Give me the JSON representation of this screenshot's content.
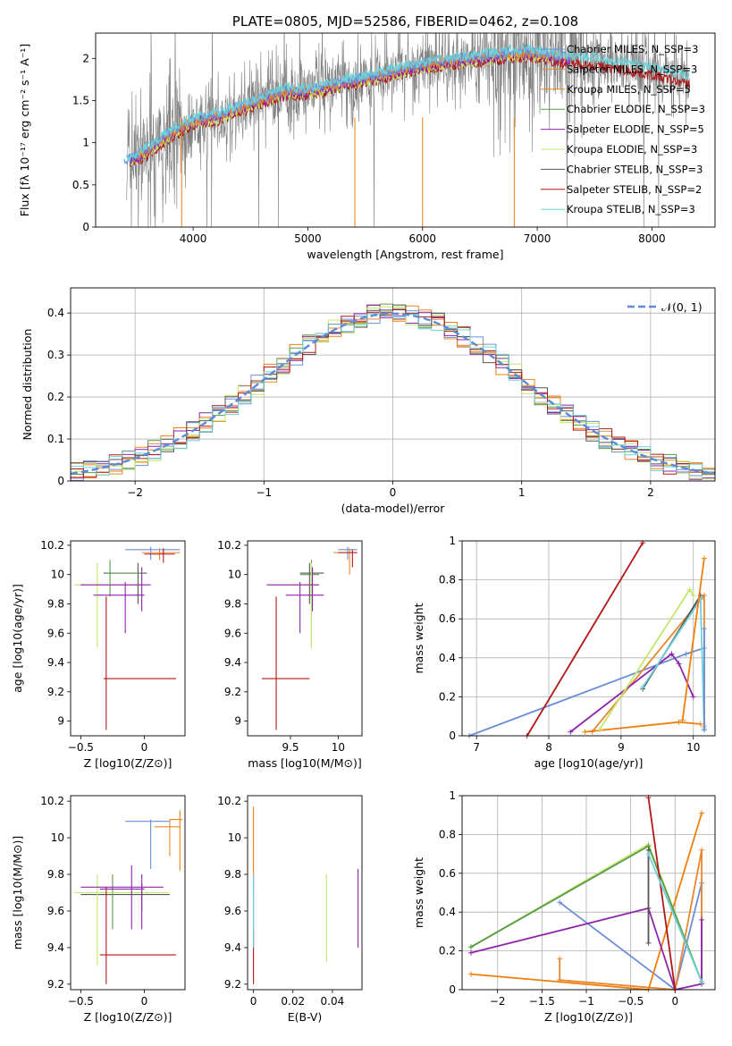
{
  "colors": [
    "#6a8fd8",
    "#e8872e",
    "#f07f0a",
    "#5a9a4a",
    "#8e24aa",
    "#c2e66a",
    "#555555",
    "#b01818",
    "#6ed0d8"
  ],
  "chart_data": [
    {
      "id": "spectrum",
      "type": "line",
      "title": "PLATE=0805, MJD=52586, FIBERID=0462, z=0.108",
      "xlabel": "wavelength [Angstrom, rest frame]",
      "ylabel": "Flux [fλ 10⁻¹⁷ erg cm⁻² s⁻¹ A⁻¹]",
      "xlim": [
        3150,
        8550
      ],
      "ylim": [
        0,
        2.3
      ],
      "xticks": [
        4000,
        5000,
        6000,
        7000,
        8000
      ],
      "yticks": [
        0.0,
        0.5,
        1.0,
        1.5,
        2.0
      ],
      "grid": false,
      "legend_position": "top-right",
      "legend": [
        "Chabrier MILES, N_SSP=3",
        "Salpeter MILES, N_SSP=3",
        "Kroupa MILES, N_SSP=5",
        "Chabrier ELODIE, N_SSP=3",
        "Salpeter ELODIE, N_SSP=5",
        "Kroupa ELODIE, N_SSP=3",
        "Chabrier STELIB, N_SSP=3",
        "Salpeter STELIB, N_SSP=2",
        "Kroupa STELIB, N_SSP=3"
      ],
      "continuum": {
        "x": [
          3400,
          3600,
          3800,
          4000,
          4200,
          4500,
          4800,
          5000,
          5300,
          5600,
          5900,
          6200,
          6500,
          6800,
          7000,
          7200,
          7400,
          7700,
          8000,
          8300
        ],
        "y": [
          0.75,
          0.9,
          1.1,
          1.25,
          1.3,
          1.45,
          1.6,
          1.6,
          1.7,
          1.78,
          1.88,
          1.95,
          2.0,
          2.05,
          2.05,
          2.0,
          1.98,
          1.92,
          1.85,
          1.75
        ]
      }
    },
    {
      "id": "residuals",
      "type": "histogram",
      "xlabel": "(data-model)/error",
      "ylabel": "Normed distribution",
      "xlim": [
        -2.5,
        2.5
      ],
      "ylim": [
        0,
        0.46
      ],
      "xticks": [
        -2,
        -1,
        0,
        1,
        2
      ],
      "yticks": [
        0.0,
        0.1,
        0.2,
        0.3,
        0.4
      ],
      "grid": true,
      "legend": [
        "𝒩(0, 1)"
      ],
      "bin_width": 0.1,
      "mean": 0,
      "sigma": 1
    },
    {
      "id": "age_vs_Z",
      "type": "errorbar",
      "xlabel": "Z [log10(Z/Z⊙)]",
      "ylabel": "age [log10(age/yr)]",
      "xlim": [
        -0.58,
        0.32
      ],
      "ylim": [
        8.9,
        10.23
      ],
      "xticks": [
        -0.5,
        0.0
      ],
      "yticks": [
        9.0,
        9.2,
        9.4,
        9.6,
        9.8,
        10.0,
        10.2
      ],
      "points": [
        {
          "x": 0.05,
          "y": 10.17,
          "xl": -0.15,
          "xh": 0.28,
          "yl": 10.1,
          "yh": 10.19,
          "c": 0
        },
        {
          "x": 0.12,
          "y": 10.15,
          "xl": -0.02,
          "xh": 0.28,
          "yl": 10.1,
          "yh": 10.18,
          "c": 1
        },
        {
          "x": 0.15,
          "y": 10.14,
          "xl": 0.0,
          "xh": 0.24,
          "yl": 10.08,
          "yh": 10.18,
          "c": 7
        },
        {
          "x": -0.05,
          "y": 10.01,
          "xl": -0.32,
          "xh": 0.02,
          "yl": 9.8,
          "yh": 10.08,
          "c": 6
        },
        {
          "x": -0.27,
          "y": 10.01,
          "xl": -0.3,
          "xh": 0.0,
          "yl": 9.85,
          "yh": 10.1,
          "c": 3
        },
        {
          "x": -0.37,
          "y": 9.93,
          "xl": -0.55,
          "xh": -0.03,
          "yl": 9.5,
          "yh": 10.08,
          "c": 5
        },
        {
          "x": -0.02,
          "y": 9.93,
          "xl": -0.5,
          "xh": 0.05,
          "yl": 9.75,
          "yh": 10.05,
          "c": 4
        },
        {
          "x": -0.15,
          "y": 9.86,
          "xl": -0.4,
          "xh": 0.0,
          "yl": 9.6,
          "yh": 9.95,
          "c": 4
        },
        {
          "x": -0.3,
          "y": 9.29,
          "xl": -0.32,
          "xh": 0.25,
          "yl": 8.94,
          "yh": 9.85,
          "c": 7
        }
      ]
    },
    {
      "id": "age_vs_mass",
      "type": "errorbar",
      "xlabel": "mass [log10(M/M⊙)]",
      "ylabel": "",
      "xlim": [
        9.05,
        10.25
      ],
      "ylim": [
        8.9,
        10.23
      ],
      "xticks": [
        9.5,
        10.0
      ],
      "yticks": [
        9.0,
        9.2,
        9.4,
        9.6,
        9.8,
        10.0,
        10.2
      ],
      "points": [
        {
          "x": 10.1,
          "y": 10.17,
          "xl": 10.0,
          "xh": 10.2,
          "yl": 10.1,
          "yh": 10.19,
          "c": 0
        },
        {
          "x": 10.12,
          "y": 10.15,
          "xl": 9.95,
          "xh": 10.2,
          "yl": 10.0,
          "yh": 10.18,
          "c": 1
        },
        {
          "x": 10.15,
          "y": 10.15,
          "xl": 10.0,
          "xh": 10.2,
          "yl": 10.05,
          "yh": 10.17,
          "c": 7
        },
        {
          "x": 9.7,
          "y": 10.01,
          "xl": 9.6,
          "xh": 9.85,
          "yl": 9.8,
          "yh": 10.08,
          "c": 6
        },
        {
          "x": 9.72,
          "y": 10.0,
          "xl": 9.6,
          "xh": 9.8,
          "yl": 9.5,
          "yh": 10.1,
          "c": 3
        },
        {
          "x": 9.72,
          "y": 9.93,
          "xl": 9.3,
          "xh": 9.8,
          "yl": 9.5,
          "yh": 10.08,
          "c": 5
        },
        {
          "x": 9.73,
          "y": 9.93,
          "xl": 9.25,
          "xh": 9.8,
          "yl": 9.75,
          "yh": 10.05,
          "c": 4
        },
        {
          "x": 9.6,
          "y": 9.86,
          "xl": 9.45,
          "xh": 9.85,
          "yl": 9.6,
          "yh": 9.95,
          "c": 4
        },
        {
          "x": 9.35,
          "y": 9.29,
          "xl": 9.2,
          "xh": 9.7,
          "yl": 8.94,
          "yh": 9.85,
          "c": 7
        }
      ]
    },
    {
      "id": "weight_vs_age",
      "type": "line",
      "xlabel": "age [log10(age/yr)]",
      "ylabel": "mass weight",
      "xlim": [
        6.8,
        10.3
      ],
      "ylim": [
        0,
        1.0
      ],
      "xticks": [
        7,
        8,
        9,
        10
      ],
      "yticks": [
        0.0,
        0.2,
        0.4,
        0.6,
        0.8,
        1.0
      ],
      "grid": true,
      "series": [
        {
          "c": 0,
          "x": [
            6.9,
            9.9,
            10.15,
            10.15
          ],
          "y": [
            0.0,
            0.42,
            0.45,
            0.03
          ]
        },
        {
          "c": 1,
          "x": [
            8.6,
            10.15,
            10.15
          ],
          "y": [
            0.02,
            0.72,
            0.05
          ]
        },
        {
          "c": 2,
          "x": [
            8.5,
            9.8,
            10.1
          ],
          "y": [
            0.02,
            0.07,
            0.06
          ]
        },
        {
          "c": 4,
          "x": [
            8.3,
            9.7,
            9.8,
            10.0
          ],
          "y": [
            0.02,
            0.42,
            0.37,
            0.2
          ]
        },
        {
          "c": 5,
          "x": [
            8.7,
            9.95,
            10.0
          ],
          "y": [
            0.03,
            0.75,
            0.72
          ]
        },
        {
          "c": 6,
          "x": [
            9.3,
            10.1
          ],
          "y": [
            0.24,
            0.72
          ]
        },
        {
          "c": 7,
          "x": [
            7.7,
            9.3
          ],
          "y": [
            0.0,
            0.99
          ]
        },
        {
          "c": 8,
          "x": [
            9.3,
            10.1,
            10.15
          ],
          "y": [
            0.25,
            0.7,
            0.04
          ]
        },
        {
          "c": 0,
          "x": [
            10.15,
            10.15
          ],
          "y": [
            0.55,
            0.03
          ]
        },
        {
          "c": 2,
          "x": [
            9.85,
            10.15
          ],
          "y": [
            0.08,
            0.91
          ]
        }
      ]
    },
    {
      "id": "mass_vs_Z",
      "type": "errorbar",
      "xlabel": "Z [log10(Z/Z⊙)]",
      "ylabel": "mass [log10(M/M⊙)]",
      "xlim": [
        -0.58,
        0.32
      ],
      "ylim": [
        9.17,
        10.23
      ],
      "xticks": [
        -0.5,
        0.0
      ],
      "yticks": [
        9.2,
        9.4,
        9.6,
        9.8,
        10.0,
        10.2
      ],
      "points": [
        {
          "x": 0.05,
          "y": 10.09,
          "xl": -0.15,
          "xh": 0.2,
          "yl": 9.83,
          "yh": 10.1,
          "c": 0
        },
        {
          "x": 0.2,
          "y": 10.06,
          "xl": 0.08,
          "xh": 0.28,
          "yl": 9.9,
          "yh": 10.1,
          "c": 1
        },
        {
          "x": 0.28,
          "y": 10.1,
          "xl": 0.2,
          "xh": 0.3,
          "yl": 9.82,
          "yh": 10.15,
          "c": 2
        },
        {
          "x": -0.02,
          "y": 9.69,
          "xl": -0.5,
          "xh": 0.2,
          "yl": 9.6,
          "yh": 9.75,
          "c": 6
        },
        {
          "x": -0.25,
          "y": 9.7,
          "xl": -0.55,
          "xh": 0.15,
          "yl": 9.5,
          "yh": 9.8,
          "c": 3
        },
        {
          "x": -0.37,
          "y": 9.7,
          "xl": -0.55,
          "xh": 0.2,
          "yl": 9.3,
          "yh": 9.8,
          "c": 5
        },
        {
          "x": -0.1,
          "y": 9.72,
          "xl": -0.35,
          "xh": 0.0,
          "yl": 9.5,
          "yh": 9.85,
          "c": 4
        },
        {
          "x": -0.02,
          "y": 9.73,
          "xl": -0.5,
          "xh": 0.15,
          "yl": 9.5,
          "yh": 9.8,
          "c": 4
        },
        {
          "x": -0.3,
          "y": 9.36,
          "xl": -0.35,
          "xh": 0.25,
          "yl": 9.2,
          "yh": 9.73,
          "c": 7
        }
      ]
    },
    {
      "id": "mass_vs_EBV",
      "type": "errorbar",
      "xlabel": "E(B-V)",
      "ylabel": "",
      "xlim": [
        -0.003,
        0.055
      ],
      "ylim": [
        9.17,
        10.23
      ],
      "xticks": [
        0.0,
        0.02,
        0.04
      ],
      "yticks": [
        9.2,
        9.4,
        9.6,
        9.8,
        10.0,
        10.2
      ],
      "points": [
        {
          "x": 0.0,
          "y": 10.0,
          "yl": 9.7,
          "yh": 10.17,
          "c": 2
        },
        {
          "x": 0.0,
          "y": 9.7,
          "yl": 9.5,
          "yh": 9.8,
          "c": 0
        },
        {
          "x": 0.0,
          "y": 9.35,
          "yl": 9.2,
          "yh": 9.5,
          "c": 7
        },
        {
          "x": 0.0,
          "y": 9.6,
          "yl": 9.4,
          "yh": 9.8,
          "c": 8
        },
        {
          "x": 0.037,
          "y": 9.6,
          "yl": 9.32,
          "yh": 9.8,
          "c": 5
        },
        {
          "x": 0.053,
          "y": 9.6,
          "yl": 9.4,
          "yh": 9.83,
          "c": 4
        }
      ]
    },
    {
      "id": "weight_vs_Z",
      "type": "line",
      "xlabel": "Z [log10(Z/Z⊙)]",
      "ylabel": "mass weight",
      "xlim": [
        -2.4,
        0.45
      ],
      "ylim": [
        0,
        1.0
      ],
      "xticks": [
        -2.0,
        -1.5,
        -1.0,
        -0.5,
        0.0
      ],
      "yticks": [
        0.0,
        0.2,
        0.4,
        0.6,
        0.8,
        1.0
      ],
      "grid": true,
      "series": [
        {
          "c": 0,
          "x": [
            -1.3,
            0.0,
            0.3,
            0.3
          ],
          "y": [
            0.45,
            0.0,
            0.55,
            0.03
          ]
        },
        {
          "c": 1,
          "x": [
            -1.3,
            0.0,
            0.3,
            0.3
          ],
          "y": [
            0.05,
            0.0,
            0.72,
            0.03
          ]
        },
        {
          "c": 2,
          "x": [
            -2.3,
            -0.3,
            0.3
          ],
          "y": [
            0.08,
            0.0,
            0.91
          ]
        },
        {
          "c": 1,
          "x": [
            -1.3,
            -1.3
          ],
          "y": [
            0.05,
            0.16
          ]
        },
        {
          "c": 4,
          "x": [
            -2.3,
            -0.3,
            0.0,
            0.3,
            0.3
          ],
          "y": [
            0.19,
            0.42,
            0.0,
            0.03,
            0.36
          ]
        },
        {
          "c": 5,
          "x": [
            -2.3,
            -0.3,
            0.3
          ],
          "y": [
            0.22,
            0.75,
            0.04
          ]
        },
        {
          "c": 3,
          "x": [
            -2.3,
            -0.3,
            0.3
          ],
          "y": [
            0.22,
            0.74,
            0.04
          ]
        },
        {
          "c": 6,
          "x": [
            -0.3,
            -0.3
          ],
          "y": [
            0.24,
            0.72
          ]
        },
        {
          "c": 7,
          "x": [
            -0.3,
            0.0
          ],
          "y": [
            0.99,
            0.0
          ]
        },
        {
          "c": 8,
          "x": [
            -0.3,
            0.3
          ],
          "y": [
            0.7,
            0.04
          ]
        }
      ]
    }
  ]
}
